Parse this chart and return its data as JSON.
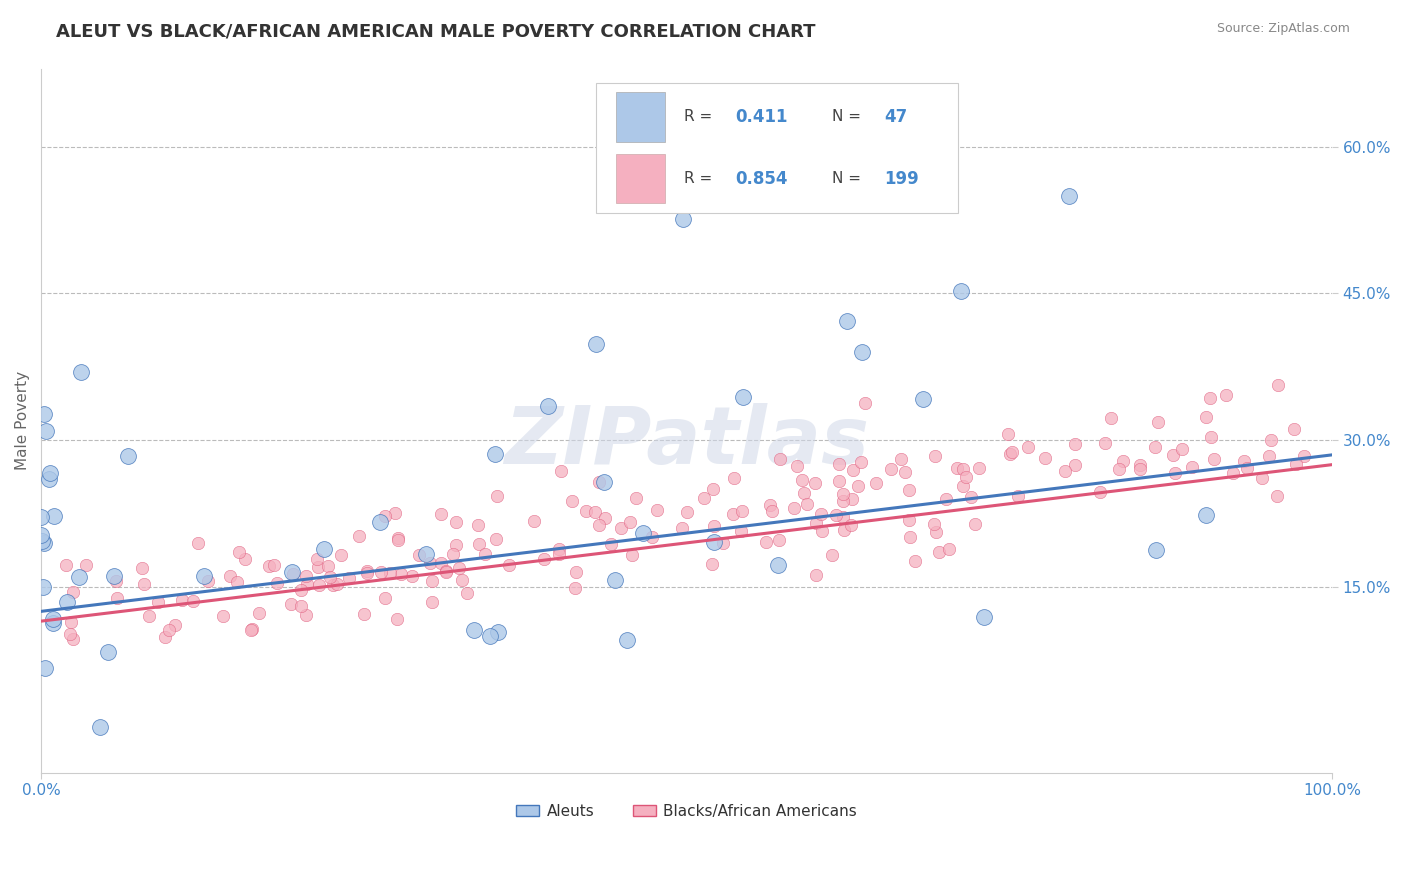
{
  "title": "ALEUT VS BLACK/AFRICAN AMERICAN MALE POVERTY CORRELATION CHART",
  "source": "Source: ZipAtlas.com",
  "ylabel": "Male Poverty",
  "watermark": "ZIPatlas",
  "legend_label1": "Aleuts",
  "legend_label2": "Blacks/African Americans",
  "R1": 0.411,
  "N1": 47,
  "R2": 0.854,
  "N2": 199,
  "color1": "#adc8e8",
  "color2": "#f5b0c0",
  "line_color1": "#4477bb",
  "line_color2": "#dd5577",
  "ytick_labels": [
    "15.0%",
    "30.0%",
    "45.0%",
    "60.0%"
  ],
  "ytick_values": [
    0.15,
    0.3,
    0.45,
    0.6
  ],
  "xlim": [
    0.0,
    1.0
  ],
  "ylim": [
    -0.04,
    0.68
  ],
  "background_color": "#ffffff",
  "grid_color": "#bbbbbb",
  "title_fontsize": 13,
  "axis_label_color": "#666666",
  "tick_label_color": "#4488cc",
  "legend_R_color": "#4488cc",
  "trendline_start_y": 0.125,
  "trendline_end_y": 0.285,
  "trendline2_start_y": 0.115,
  "trendline2_end_y": 0.275
}
